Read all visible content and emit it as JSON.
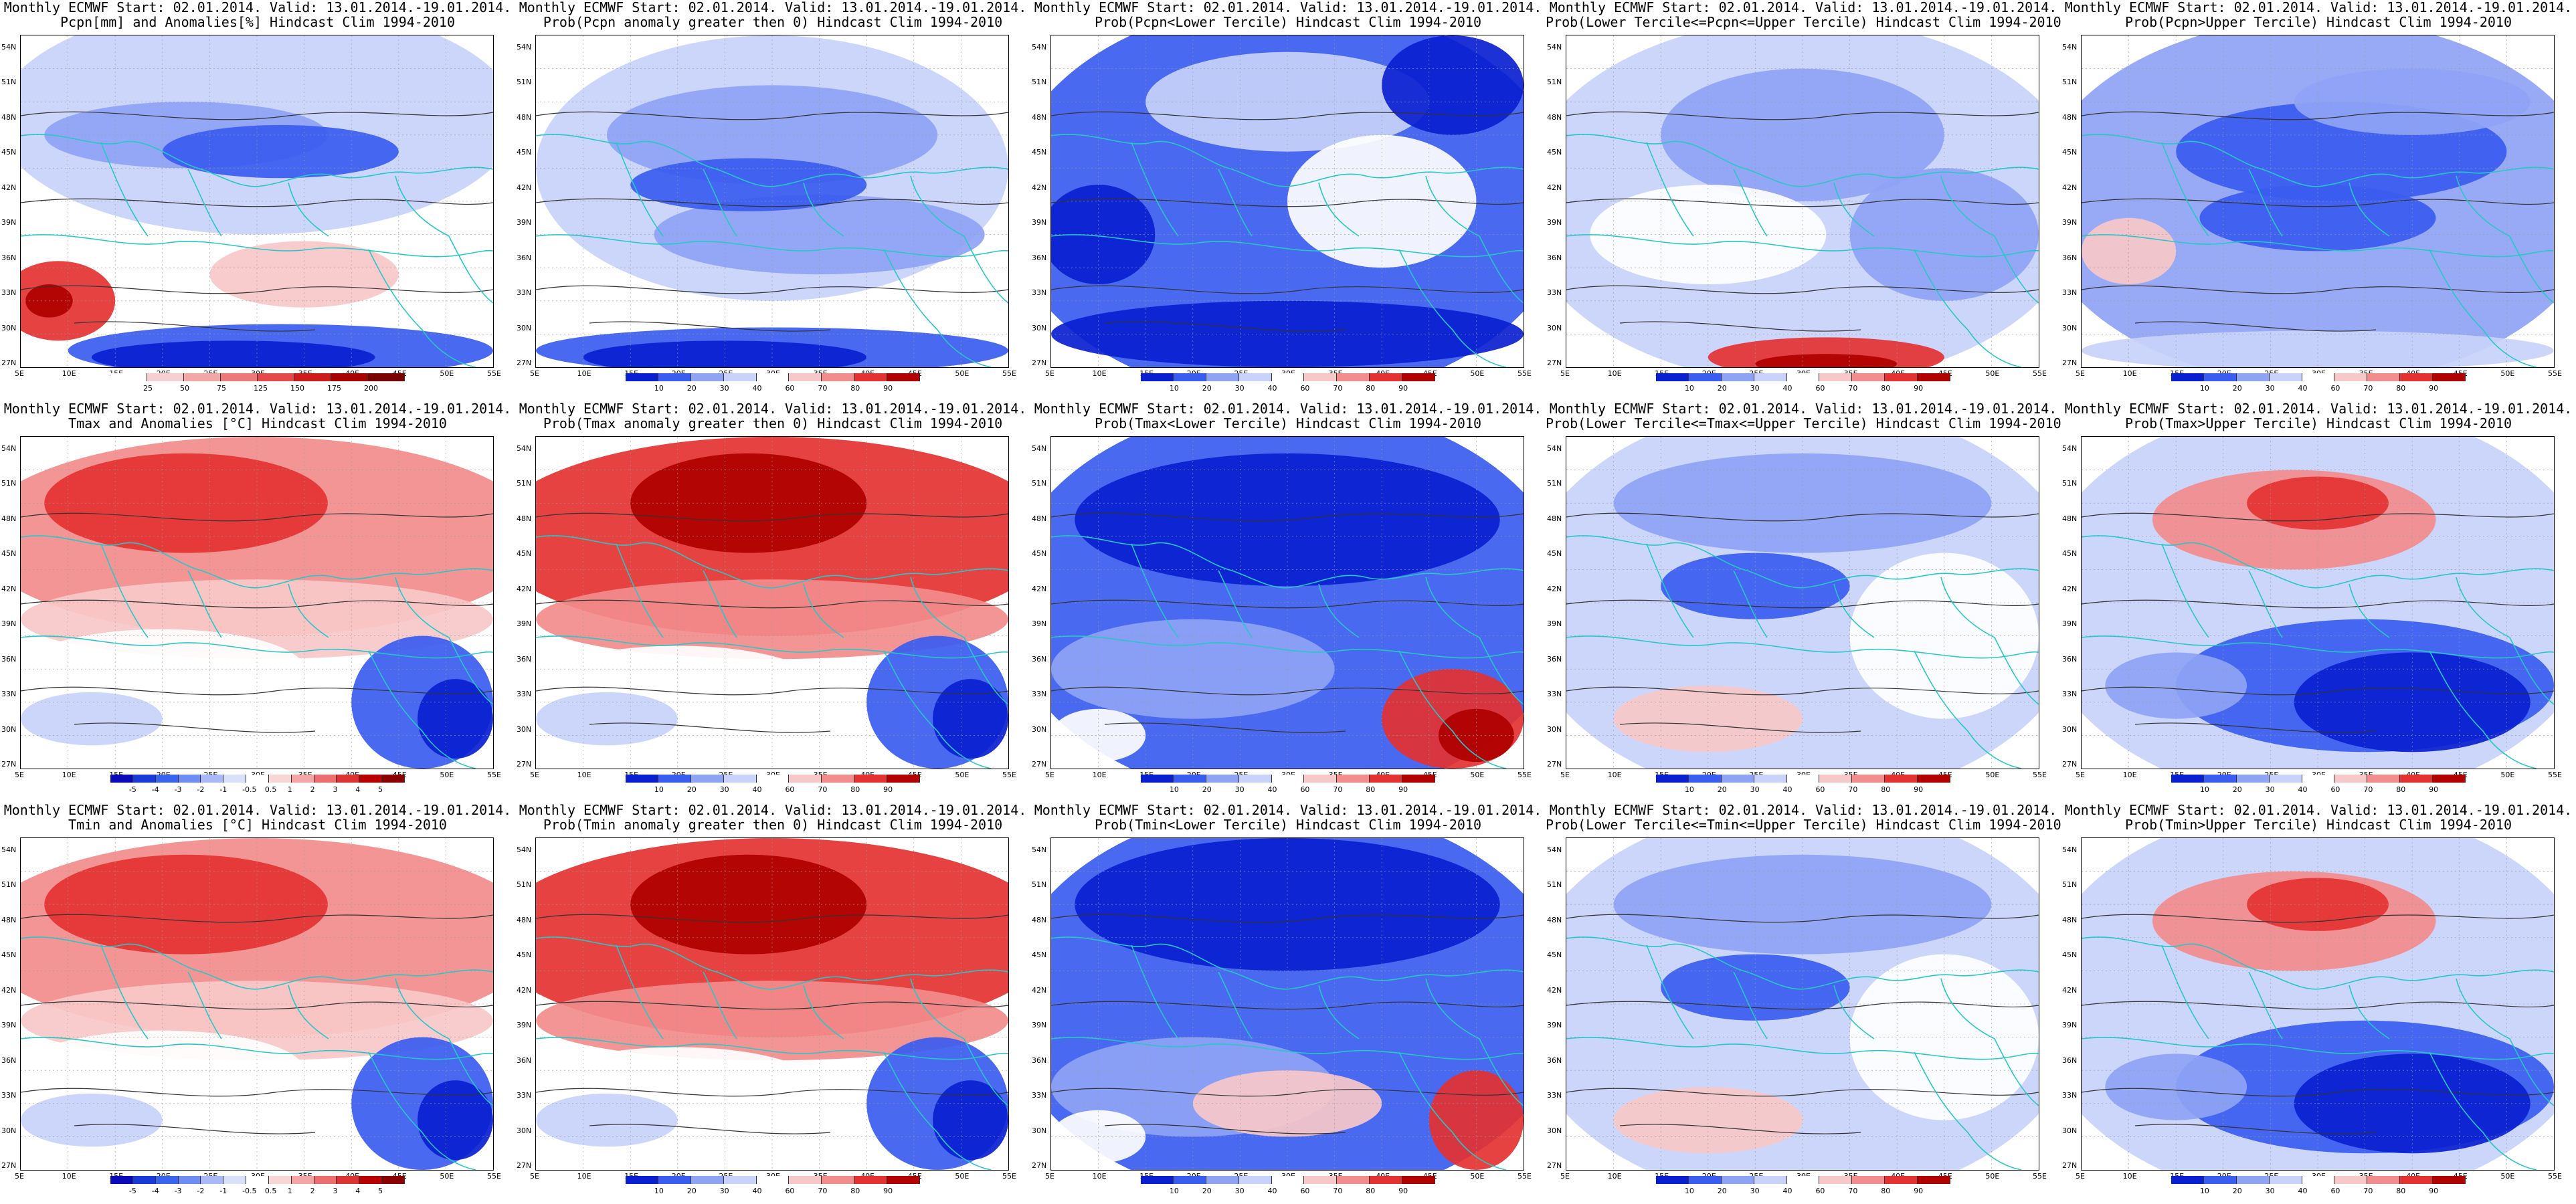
{
  "colorbars": {
    "pcpn_anom": [
      "25",
      "50",
      "75",
      "125",
      "150",
      "175",
      "200"
    ],
    "temp_anom": [
      "-5",
      "-4",
      "-3",
      "-2",
      "-1",
      "-0.5",
      "0.5",
      "1",
      "2",
      "3",
      "4",
      "5"
    ],
    "prob": [
      "10",
      "20",
      "30",
      "40",
      "60",
      "70",
      "80",
      "90"
    ]
  },
  "xticks": [
    "5E",
    "10E",
    "15E",
    "20E",
    "25E",
    "30E",
    "35E",
    "40E",
    "45E",
    "50E",
    "55E"
  ],
  "yticks": [
    "54N",
    "51N",
    "48N",
    "45N",
    "42N",
    "39N",
    "36N",
    "33N",
    "30N",
    "27N"
  ],
  "colors": {
    "deep_blue": "#0a1fd0",
    "blue": "#3a5cf0",
    "light_blue": "#8fa3f5",
    "pale_blue": "#c8d2fa",
    "white": "#ffffff",
    "pale_red": "#f7c8c8",
    "light_red": "#f38c8c",
    "red": "#e43232",
    "deep_red": "#b00000",
    "coast": "#27c7c7",
    "contour": "#333333"
  },
  "panels": [
    {
      "line1": "Monthly ECMWF Start: 02.01.2014. Valid: 13.01.2014.-19.01.2014.",
      "line2": "Pcpn[mm] and Anomalies[%] Hindcast Clim 1994-2010",
      "bar": "pcpn_anom",
      "scheme": "p_anom"
    },
    {
      "line1": "Monthly ECMWF Start: 02.01.2014. Valid: 13.01.2014.-19.01.2014.",
      "line2": "Prob(Pcpn anomaly greater then 0) Hindcast Clim 1994-2010",
      "bar": "prob",
      "scheme": "p_pos"
    },
    {
      "line1": "Monthly ECMWF Start: 02.01.2014. Valid: 13.01.2014.-19.01.2014.",
      "line2": "Prob(Pcpn<Lower Tercile) Hindcast Clim 1994-2010",
      "bar": "prob",
      "scheme": "p_low"
    },
    {
      "line1": "Monthly ECMWF Start: 02.01.2014. Valid: 13.01.2014.-19.01.2014.",
      "line2": "Prob(Lower Tercile<=Pcpn<=Upper Tercile) Hindcast Clim 1994-2010",
      "bar": "prob",
      "scheme": "p_mid"
    },
    {
      "line1": "Monthly ECMWF Start: 02.01.2014. Valid: 13.01.2014.-19.01.2014.",
      "line2": "Prob(Pcpn>Upper Tercile) Hindcast Clim 1994-2010",
      "bar": "prob",
      "scheme": "p_up"
    },
    {
      "line1": "Monthly ECMWF Start: 02.01.2014. Valid: 13.01.2014.-19.01.2014.",
      "line2": "Tmax and Anomalies [°C] Hindcast Clim 1994-2010",
      "bar": "temp_anom",
      "scheme": "t_anom"
    },
    {
      "line1": "Monthly ECMWF Start: 02.01.2014. Valid: 13.01.2014.-19.01.2014.",
      "line2": "Prob(Tmax anomaly greater then 0) Hindcast Clim 1994-2010",
      "bar": "prob",
      "scheme": "t_pos"
    },
    {
      "line1": "Monthly ECMWF Start: 02.01.2014. Valid: 13.01.2014.-19.01.2014.",
      "line2": "Prob(Tmax<Lower Tercile) Hindcast Clim 1994-2010",
      "bar": "prob",
      "scheme": "t_low"
    },
    {
      "line1": "Monthly ECMWF Start: 02.01.2014. Valid: 13.01.2014.-19.01.2014.",
      "line2": "Prob(Lower Tercile<=Tmax<=Upper Tercile) Hindcast Clim 1994-2010",
      "bar": "prob",
      "scheme": "t_mid"
    },
    {
      "line1": "Monthly ECMWF Start: 02.01.2014. Valid: 13.01.2014.-19.01.2014.",
      "line2": "Prob(Tmax>Upper Tercile) Hindcast Clim 1994-2010",
      "bar": "prob",
      "scheme": "t_up"
    },
    {
      "line1": "Monthly ECMWF Start: 02.01.2014. Valid: 13.01.2014.-19.01.2014.",
      "line2": "Tmin and Anomalies [°C] Hindcast Clim 1994-2010",
      "bar": "temp_anom",
      "scheme": "t_anom"
    },
    {
      "line1": "Monthly ECMWF Start: 02.01.2014. Valid: 13.01.2014.-19.01.2014.",
      "line2": "Prob(Tmin anomaly greater then 0) Hindcast Clim 1994-2010",
      "bar": "prob",
      "scheme": "t_pos"
    },
    {
      "line1": "Monthly ECMWF Start: 02.01.2014. Valid: 13.01.2014.-19.01.2014.",
      "line2": "Prob(Tmin<Lower Tercile) Hindcast Clim 1994-2010",
      "bar": "prob",
      "scheme": "tn_low"
    },
    {
      "line1": "Monthly ECMWF Start: 02.01.2014. Valid: 13.01.2014.-19.01.2014.",
      "line2": "Prob(Lower Tercile<=Tmin<=Upper Tercile) Hindcast Clim 1994-2010",
      "bar": "prob",
      "scheme": "t_mid"
    },
    {
      "line1": "Monthly ECMWF Start: 02.01.2014. Valid: 13.01.2014.-19.01.2014.",
      "line2": "Prob(Tmin>Upper Tercile) Hindcast Clim 1994-2010",
      "bar": "prob",
      "scheme": "t_up"
    }
  ]
}
